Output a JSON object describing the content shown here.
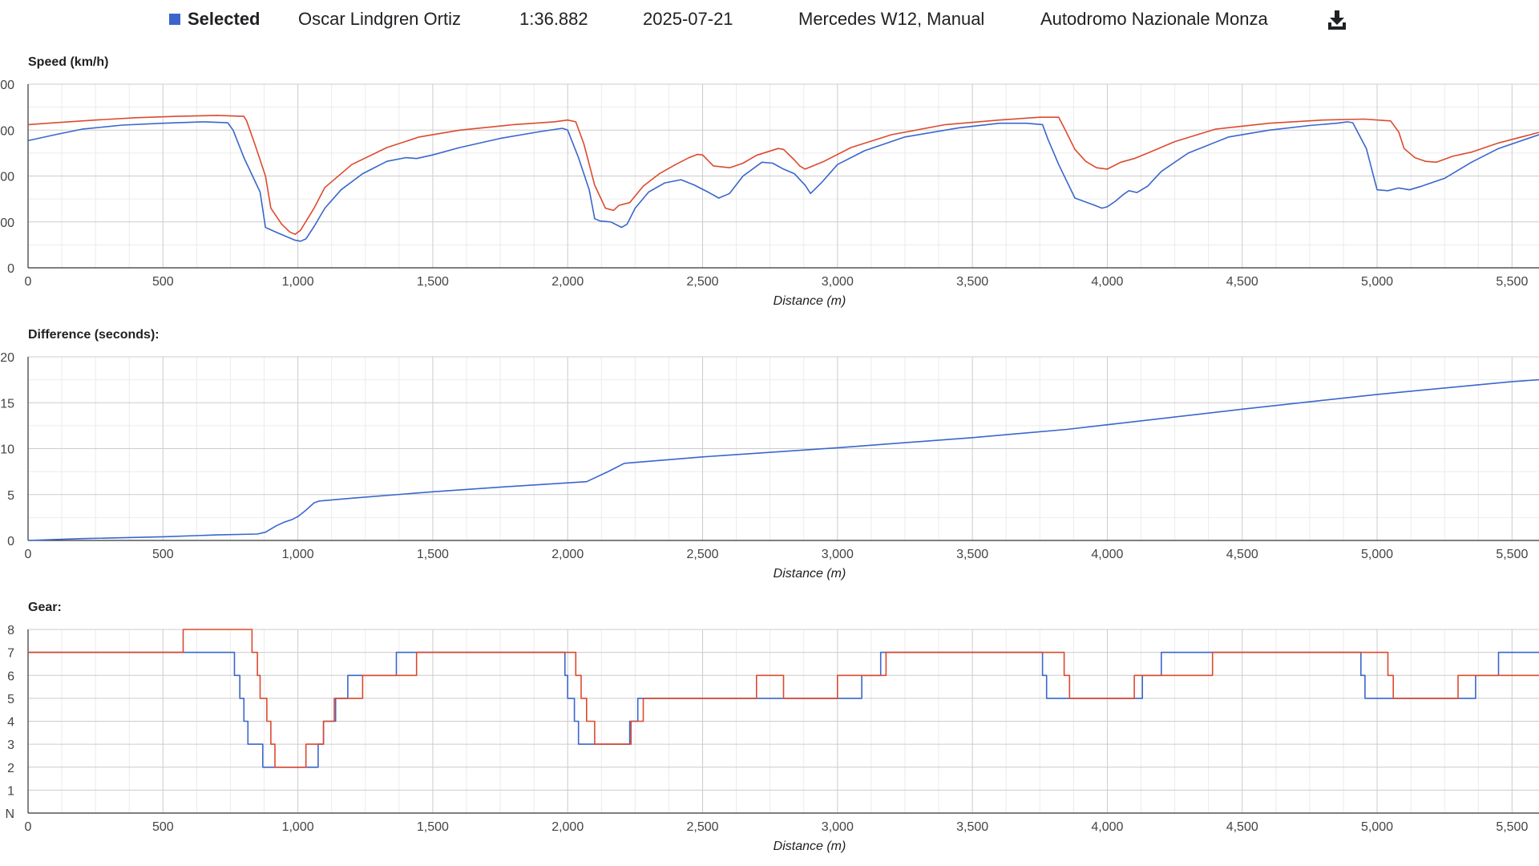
{
  "header": {
    "selected_label": "Selected",
    "driver": "Oscar Lindgren Ortiz",
    "lap_time": "1:36.882",
    "date": "2025-07-21",
    "car": "Mercedes W12, Manual",
    "track": "Autodromo Nazionale Monza",
    "download_icon": "download-icon",
    "selected_color": "#3a66cc"
  },
  "colors": {
    "selected": "#3a66cc",
    "reference": "#dc4a2f",
    "grid_major": "#cccccc",
    "grid_minor": "#ebebeb",
    "axis": "#333333"
  },
  "chart_data": [
    {
      "type": "line",
      "title": "Speed (km/h)",
      "xlabel": "Distance (m)",
      "ylabel": "",
      "xlim": [
        0,
        5600
      ],
      "ylim": [
        0,
        400
      ],
      "x_ticks": [
        0,
        500,
        1000,
        1500,
        2000,
        2500,
        3000,
        3500,
        4000,
        4500,
        5000,
        5500
      ],
      "x_tick_labels": [
        "0",
        "500",
        "1,000",
        "1,500",
        "2,000",
        "2,500",
        "3,000",
        "3,500",
        "4,000",
        "4,500",
        "5,000",
        "5,500"
      ],
      "y_ticks": [
        0,
        100,
        200,
        300,
        400
      ],
      "y_tick_labels": [
        "0",
        "00",
        "00",
        "00",
        "00"
      ],
      "grid": true,
      "series": [
        {
          "color": "#3a66cc",
          "x": [
            0,
            100,
            200,
            350,
            500,
            650,
            740,
            760,
            800,
            860,
            880,
            930,
            990,
            1010,
            1030,
            1060,
            1100,
            1160,
            1240,
            1330,
            1400,
            1440,
            1500,
            1600,
            1750,
            1900,
            1980,
            2000,
            2040,
            2080,
            2100,
            2120,
            2160,
            2200,
            2220,
            2250,
            2300,
            2360,
            2420,
            2470,
            2520,
            2560,
            2600,
            2650,
            2720,
            2760,
            2800,
            2840,
            2880,
            2900,
            2940,
            3000,
            3100,
            3250,
            3450,
            3600,
            3700,
            3760,
            3780,
            3820,
            3880,
            3950,
            3980,
            4000,
            4030,
            4060,
            4080,
            4110,
            4150,
            4200,
            4300,
            4450,
            4600,
            4750,
            4850,
            4890,
            4910,
            4960,
            5000,
            5040,
            5080,
            5120,
            5160,
            5250,
            5350,
            5450,
            5600
          ],
          "y": [
            277,
            290,
            302,
            311,
            315,
            318,
            316,
            300,
            240,
            165,
            88,
            75,
            60,
            58,
            63,
            90,
            130,
            170,
            205,
            232,
            240,
            238,
            246,
            262,
            282,
            297,
            304,
            300,
            240,
            170,
            107,
            102,
            100,
            88,
            95,
            130,
            165,
            185,
            192,
            180,
            165,
            152,
            162,
            200,
            230,
            228,
            215,
            205,
            180,
            162,
            185,
            225,
            255,
            285,
            305,
            315,
            315,
            312,
            280,
            225,
            152,
            137,
            130,
            133,
            145,
            160,
            168,
            164,
            178,
            210,
            250,
            285,
            300,
            310,
            315,
            318,
            316,
            260,
            170,
            168,
            174,
            170,
            177,
            195,
            230,
            260,
            290
          ]
        },
        {
          "color": "#dc4a2f",
          "x": [
            0,
            100,
            250,
            400,
            550,
            700,
            800,
            810,
            840,
            880,
            900,
            940,
            970,
            990,
            1010,
            1060,
            1100,
            1200,
            1330,
            1450,
            1600,
            1800,
            1950,
            2000,
            2030,
            2060,
            2100,
            2140,
            2170,
            2190,
            2230,
            2280,
            2340,
            2400,
            2450,
            2480,
            2500,
            2540,
            2600,
            2650,
            2700,
            2780,
            2800,
            2840,
            2860,
            2880,
            2950,
            3050,
            3200,
            3400,
            3600,
            3750,
            3820,
            3840,
            3880,
            3920,
            3960,
            4000,
            4050,
            4100,
            4150,
            4250,
            4400,
            4600,
            4800,
            4950,
            5050,
            5080,
            5100,
            5140,
            5180,
            5220,
            5280,
            5350,
            5450,
            5600
          ],
          "y": [
            312,
            316,
            322,
            327,
            330,
            332,
            330,
            320,
            270,
            200,
            130,
            95,
            78,
            73,
            82,
            130,
            175,
            225,
            262,
            285,
            300,
            312,
            318,
            322,
            318,
            270,
            180,
            130,
            125,
            136,
            142,
            178,
            205,
            225,
            240,
            247,
            246,
            222,
            218,
            228,
            245,
            260,
            258,
            235,
            222,
            215,
            232,
            262,
            290,
            312,
            322,
            328,
            328,
            305,
            258,
            232,
            218,
            215,
            230,
            238,
            250,
            275,
            302,
            315,
            322,
            324,
            320,
            296,
            260,
            240,
            232,
            230,
            243,
            252,
            272,
            295
          ]
        }
      ]
    },
    {
      "type": "line",
      "title": "Difference (seconds):",
      "xlabel": "Distance (m)",
      "ylabel": "",
      "xlim": [
        0,
        5600
      ],
      "ylim": [
        0,
        20
      ],
      "x_ticks": [
        0,
        500,
        1000,
        1500,
        2000,
        2500,
        3000,
        3500,
        4000,
        4500,
        5000,
        5500
      ],
      "x_tick_labels": [
        "0",
        "500",
        "1,000",
        "1,500",
        "2,000",
        "2,500",
        "3,000",
        "3,500",
        "4,000",
        "4,500",
        "5,000",
        "5,500"
      ],
      "y_ticks": [
        0,
        5,
        10,
        15,
        20
      ],
      "y_tick_labels": [
        "0",
        "5",
        "10",
        "15",
        "20"
      ],
      "grid": true,
      "series": [
        {
          "color": "#3a66cc",
          "x": [
            0,
            200,
            500,
            700,
            850,
            880,
            920,
            950,
            980,
            1000,
            1030,
            1060,
            1080,
            1200,
            1500,
            1800,
            2070,
            2150,
            2210,
            2500,
            3000,
            3500,
            3850,
            4000,
            4500,
            5000,
            5500,
            5600
          ],
          "y": [
            0,
            0.2,
            0.4,
            0.6,
            0.7,
            0.9,
            1.6,
            2.0,
            2.3,
            2.6,
            3.3,
            4.1,
            4.3,
            4.6,
            5.3,
            5.9,
            6.4,
            7.5,
            8.4,
            9.1,
            10.1,
            11.2,
            12.1,
            12.6,
            14.3,
            15.9,
            17.3,
            17.5
          ]
        }
      ]
    },
    {
      "type": "line",
      "title": "Gear:",
      "xlabel": "Distance (m)",
      "ylabel": "",
      "xlim": [
        0,
        5600
      ],
      "ylim": [
        0,
        8
      ],
      "x_ticks": [
        0,
        500,
        1000,
        1500,
        2000,
        2500,
        3000,
        3500,
        4000,
        4500,
        5000,
        5500
      ],
      "x_tick_labels": [
        "0",
        "500",
        "1,000",
        "1,500",
        "2,000",
        "2,500",
        "3,000",
        "3,500",
        "4,000",
        "4,500",
        "5,000",
        "5,500"
      ],
      "y_ticks": [
        0,
        1,
        2,
        3,
        4,
        5,
        6,
        7,
        8
      ],
      "y_tick_labels": [
        "N",
        "1",
        "2",
        "3",
        "4",
        "5",
        "6",
        "7",
        "8"
      ],
      "grid": true,
      "step": true,
      "series": [
        {
          "color": "#3a66cc",
          "x": [
            0,
            765,
            785,
            800,
            815,
            840,
            870,
            1075,
            1095,
            1140,
            1185,
            1270,
            1365,
            1440,
            1990,
            2000,
            2025,
            2040,
            2090,
            2230,
            2260,
            2700,
            2800,
            3090,
            3160,
            3760,
            3775,
            3795,
            3820,
            4130,
            4200,
            4380,
            4940,
            4955,
            4965,
            4985,
            5365,
            5450,
            5600
          ],
          "y": [
            7,
            6,
            5,
            4,
            3,
            3,
            2,
            3,
            4,
            5,
            6,
            6,
            7,
            7,
            6,
            5,
            4,
            3,
            3,
            4,
            5,
            5,
            5,
            6,
            7,
            6,
            5,
            5,
            5,
            6,
            7,
            7,
            6,
            5,
            5,
            5,
            6,
            7,
            7
          ]
        },
        {
          "color": "#dc4a2f",
          "x": [
            0,
            575,
            830,
            850,
            860,
            885,
            900,
            915,
            935,
            1030,
            1055,
            1095,
            1135,
            1240,
            1290,
            1440,
            2030,
            2050,
            2070,
            2100,
            2235,
            2280,
            2330,
            2700,
            2800,
            3000,
            3180,
            3840,
            3860,
            3875,
            3890,
            4100,
            4140,
            4200,
            4390,
            5040,
            5060,
            5075,
            5100,
            5300,
            5600
          ],
          "y": [
            7,
            8,
            7,
            6,
            5,
            4,
            3,
            2,
            2,
            3,
            3,
            4,
            5,
            6,
            6,
            7,
            6,
            5,
            4,
            3,
            4,
            5,
            5,
            6,
            5,
            6,
            7,
            6,
            5,
            5,
            5,
            6,
            6,
            6,
            7,
            6,
            5,
            5,
            5,
            6,
            6
          ]
        }
      ]
    }
  ]
}
